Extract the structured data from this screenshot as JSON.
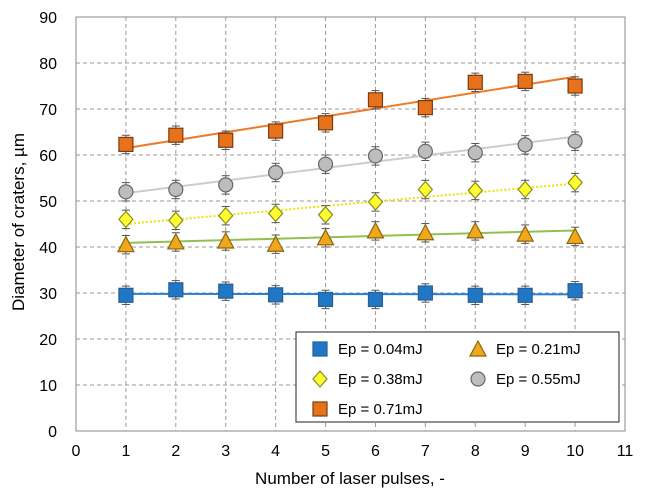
{
  "chart_data": {
    "type": "scatter",
    "xlabel": "Number of laser pulses, -",
    "ylabel": "Diameter of craters, µm",
    "xlim": [
      0,
      11
    ],
    "ylim": [
      0,
      90
    ],
    "x_ticks": [
      0,
      1,
      2,
      3,
      4,
      5,
      6,
      7,
      8,
      9,
      10,
      11
    ],
    "y_ticks": [
      0,
      10,
      20,
      30,
      40,
      50,
      60,
      70,
      80,
      90
    ],
    "grid": true,
    "legend_position": "bottom-right",
    "error_bar": 2,
    "series": [
      {
        "name": "Ep = 0.04mJ",
        "marker": "square",
        "color": "#1f77c6",
        "edge": "#2a5f8f",
        "trend_color": "#2b7fd1",
        "trend_style": "solid",
        "x": [
          1,
          2,
          3,
          4,
          5,
          6,
          7,
          8,
          9,
          10
        ],
        "y": [
          29.5,
          30.7,
          30.4,
          29.6,
          28.6,
          28.6,
          30.0,
          29.5,
          29.5,
          30.5
        ],
        "trend": [
          29.8,
          29.7
        ]
      },
      {
        "name": "Ep = 0.21mJ",
        "marker": "triangle",
        "color": "#f0a81a",
        "edge": "#8a6410",
        "trend_color": "#92c050",
        "trend_style": "solid",
        "x": [
          1,
          2,
          3,
          4,
          5,
          6,
          7,
          8,
          9,
          10
        ],
        "y": [
          40.5,
          41.1,
          41.3,
          40.6,
          42.0,
          43.5,
          43.1,
          43.5,
          42.8,
          42.3
        ],
        "trend": [
          40.9,
          43.6
        ]
      },
      {
        "name": "Ep = 0.38mJ",
        "marker": "diamond",
        "color": "#ffff30",
        "edge": "#8a8a20",
        "trend_color": "#e6e600",
        "trend_style": "dotted",
        "x": [
          1,
          2,
          3,
          4,
          5,
          6,
          7,
          8,
          9,
          10
        ],
        "y": [
          46.0,
          45.8,
          46.8,
          47.3,
          47.0,
          49.8,
          52.5,
          52.3,
          52.5,
          54.0
        ],
        "trend": [
          45.0,
          53.8
        ]
      },
      {
        "name": "Ep = 0.55mJ",
        "marker": "circle",
        "color": "#bdbdbd",
        "edge": "#666666",
        "trend_color": "#cccccc",
        "trend_style": "solid",
        "x": [
          1,
          2,
          3,
          4,
          5,
          6,
          7,
          8,
          9,
          10
        ],
        "y": [
          52.0,
          52.5,
          53.5,
          56.2,
          58.0,
          59.8,
          60.8,
          60.5,
          62.2,
          63.0
        ],
        "trend": [
          51.7,
          64.0
        ]
      },
      {
        "name": "Ep = 0.71mJ",
        "marker": "square",
        "color": "#e8721c",
        "edge": "#7a3c0e",
        "trend_color": "#ee7a2a",
        "trend_style": "solid",
        "x": [
          1,
          2,
          3,
          4,
          5,
          6,
          7,
          8,
          9,
          10
        ],
        "y": [
          62.3,
          64.3,
          63.2,
          65.2,
          67.0,
          72.0,
          70.3,
          75.8,
          76.0,
          75.0
        ],
        "trend": [
          61.5,
          77.0
        ]
      }
    ]
  }
}
